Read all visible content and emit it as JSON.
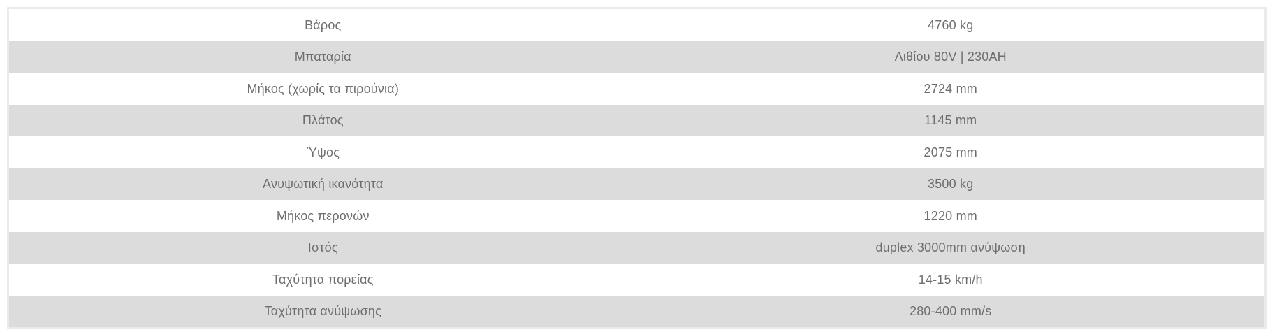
{
  "table": {
    "name": "product-specifications",
    "rows": [
      {
        "label": "Βάρος",
        "value": "4760 kg"
      },
      {
        "label": "Μπαταρία",
        "value": "Λιθίου 80V | 230AH"
      },
      {
        "label": "Μήκος (χωρίς τα πιρούνια)",
        "value": "2724 mm"
      },
      {
        "label": "Πλάτος",
        "value": "1145 mm"
      },
      {
        "label": "Ύψος",
        "value": "2075 mm"
      },
      {
        "label": "Ανυψωτική ικανότητα",
        "value": "3500 kg"
      },
      {
        "label": "Μήκος περονών",
        "value": "1220 mm"
      },
      {
        "label": "Ιστός",
        "value": "duplex 3000mm ανύψωση"
      },
      {
        "label": "Ταχύτητα πορείας",
        "value": "14-15 km/h"
      },
      {
        "label": "Ταχύτητα ανύψωσης",
        "value": "280-400 mm/s"
      }
    ]
  },
  "colors": {
    "stripe_row_background": "#dcdcdc",
    "table_border": "#ebebeb",
    "text": "#6d6e70",
    "page_background": "#ffffff"
  }
}
